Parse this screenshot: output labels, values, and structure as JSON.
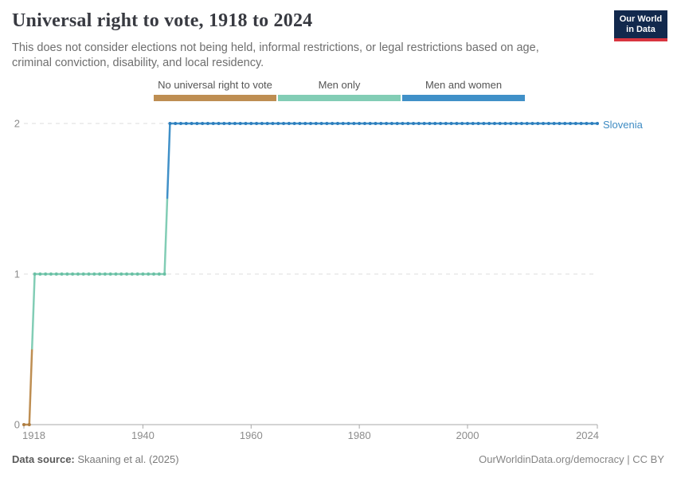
{
  "header": {
    "title": "Universal right to vote, 1918 to 2024",
    "subtitle": "This does not consider elections not being held, informal restrictions, or legal restrictions based on age, criminal conviction, disability, and local residency.",
    "logo_line1": "Our World",
    "logo_line2": "in Data"
  },
  "legend": {
    "items": [
      {
        "label": "No universal right to vote",
        "color": "#be8e52"
      },
      {
        "label": "Men only",
        "color": "#82cdb5"
      },
      {
        "label": "Men and women",
        "color": "#4090c8"
      }
    ]
  },
  "entity_label": "Slovenia",
  "footer": {
    "source_label": "Data source:",
    "source_value": " Skaaning et al. (2025)",
    "credit": "OurWorldinData.org/democracy | CC BY"
  },
  "colors": {
    "accent_blue": "#3e8bc3",
    "logo_navy": "#12294d",
    "logo_red": "#d8353f",
    "grid": "#dcdcdc",
    "axis": "#a8a8a8",
    "axis_label": "#8c8c8c"
  },
  "chart_data": {
    "type": "line",
    "subtype": "step-with-yearly-markers",
    "title": "Universal right to vote, 1918 to 2024",
    "entity": "Slovenia",
    "x_range": [
      1918,
      2024
    ],
    "y_range": [
      0,
      2
    ],
    "x_ticks": [
      1918,
      1940,
      1960,
      1980,
      2000,
      2024
    ],
    "y_ticks": [
      0,
      1,
      2
    ],
    "grid": "horizontal-dashed",
    "legend_position": "top",
    "value_labels": {
      "0": "No universal right to vote",
      "1": "Men only",
      "2": "Men and women"
    },
    "segments": [
      {
        "category": "No universal right to vote",
        "start_year": 1918,
        "end_year": 1919,
        "value": 0,
        "line_color": "#be8e52",
        "dot_color": "#ad7c41"
      },
      {
        "category": "Men only",
        "start_year": 1920,
        "end_year": 1944,
        "value": 1,
        "line_color": "#82cdb5",
        "dot_color": "#69c0a4"
      },
      {
        "category": "Men and women",
        "start_year": 1945,
        "end_year": 2024,
        "value": 2,
        "line_color": "#4090c8",
        "dot_color": "#2d7ebd"
      }
    ]
  }
}
